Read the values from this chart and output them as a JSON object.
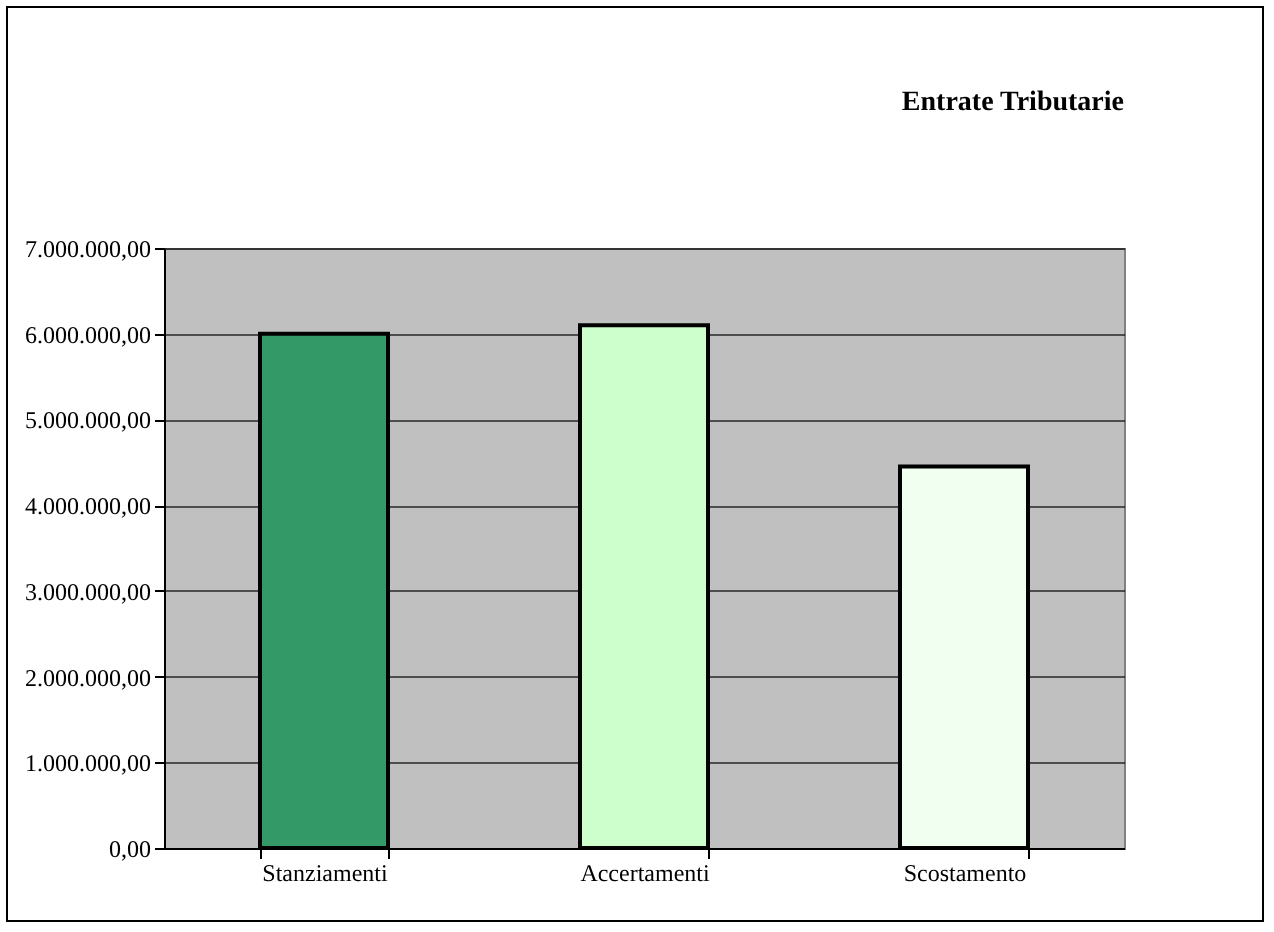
{
  "chart_data": {
    "type": "bar",
    "title": "Entrate Tributarie",
    "categories": [
      "Stanziamenti",
      "Accertamenti",
      "Scostamento"
    ],
    "values": [
      6000000,
      6100000,
      4450000
    ],
    "colors": [
      "#339966",
      "#ccffcc",
      "#f0fff0"
    ],
    "ylim": [
      0,
      7000000
    ],
    "yticks": [
      {
        "value": 0,
        "label": "0,00"
      },
      {
        "value": 1000000,
        "label": "1.000.000,00"
      },
      {
        "value": 2000000,
        "label": "2.000.000,00"
      },
      {
        "value": 3000000,
        "label": "3.000.000,00"
      },
      {
        "value": 4000000,
        "label": "4.000.000,00"
      },
      {
        "value": 5000000,
        "label": "5.000.000,00"
      },
      {
        "value": 6000000,
        "label": "6.000.000,00"
      },
      {
        "value": 7000000,
        "label": "7.000.000,00"
      }
    ],
    "grid": "y"
  }
}
